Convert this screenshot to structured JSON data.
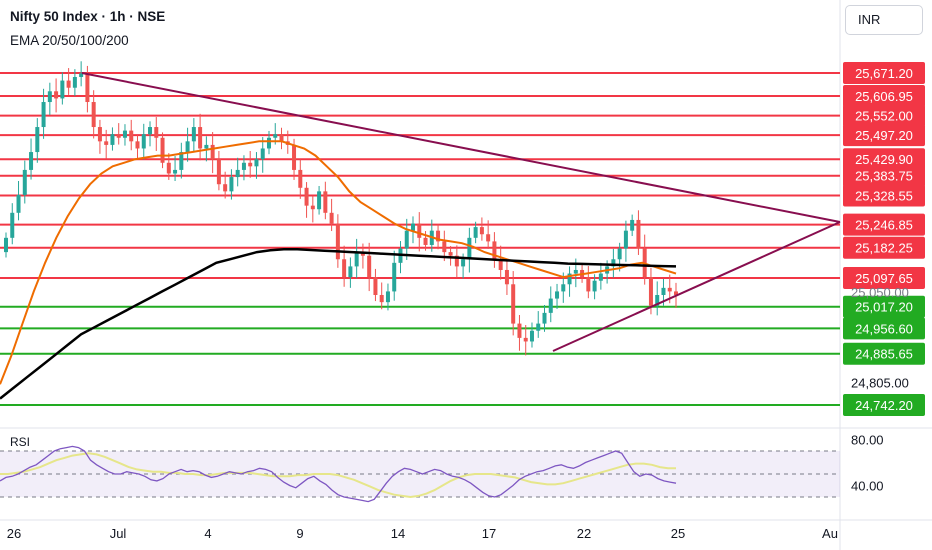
{
  "header": {
    "title": "Nifty 50 Index · 1h · NSE",
    "indicators": "EMA 20/50/100/200",
    "currency": "INR"
  },
  "chart_data": [
    {
      "type": "candlestick",
      "symbol": "Nifty 50 Index",
      "interval": "1h",
      "ylim": [
        24700,
        25720
      ],
      "x_ticks": [
        "26",
        "Jul",
        "4",
        "9",
        "14",
        "17",
        "22",
        "25",
        "Au"
      ],
      "y_levels_green": [
        25017.2,
        24956.6,
        24885.65,
        24742.2
      ],
      "y_levels_red": [
        25671.2,
        25606.95,
        25552.0,
        25497.2,
        25429.9,
        25383.75,
        25328.55,
        25246.85,
        25182.25,
        25097.65
      ],
      "y_axis_labels": [
        "24,805.00"
      ],
      "price_label_partial": "25,050.00",
      "trendlines": [
        {
          "name": "upper trendline",
          "from": [
            "Jun 28",
            25660
          ],
          "to": [
            "Jul 27",
            25250
          ]
        },
        {
          "name": "lower trendline",
          "from": [
            "Jul 20",
            24880
          ],
          "to": [
            "Jul 27",
            25250
          ]
        }
      ],
      "colors": {
        "up": "#26a69a",
        "down": "#ef5350",
        "resistance": "#f23645",
        "support": "#22ab22",
        "ema_fast": "#ef6c00",
        "ema_slow": "#000000",
        "trendline": "#880e4f"
      },
      "closes": [
        25210,
        25280,
        25330,
        25400,
        25450,
        25520,
        25590,
        25620,
        25600,
        25650,
        25630,
        25660,
        25670,
        25590,
        25520,
        25480,
        25470,
        25500,
        25490,
        25510,
        25480,
        25460,
        25500,
        25520,
        25490,
        25420,
        25390,
        25400,
        25450,
        25480,
        25520,
        25460,
        25470,
        25430,
        25360,
        25340,
        25380,
        25400,
        25420,
        25410,
        25430,
        25460,
        25490,
        25500,
        25480,
        25470,
        25400,
        25350,
        25300,
        25290,
        25340,
        25280,
        25250,
        25150,
        25100,
        25130,
        25170,
        25160,
        25100,
        25050,
        25030,
        25060,
        25140,
        25180,
        25230,
        25250,
        25210,
        25190,
        25230,
        25200,
        25170,
        25160,
        25130,
        25150,
        25210,
        25240,
        25220,
        25200,
        25150,
        25120,
        25080,
        24970,
        24930,
        24920,
        24950,
        24970,
        25000,
        25040,
        25060,
        25080,
        25110,
        25120,
        25100,
        25060,
        25090,
        25110,
        25130,
        25150,
        25180,
        25230,
        25260,
        25180,
        25100,
        25020,
        25050,
        25070,
        25060,
        25050
      ],
      "ema_fast": [
        24800,
        24880,
        24970,
        25060,
        25140,
        25210,
        25270,
        25320,
        25360,
        25390,
        25410,
        25420,
        25430,
        25435,
        25440,
        25440,
        25445,
        25450,
        25455,
        25460,
        25465,
        25470,
        25475,
        25480,
        25480,
        25480,
        25470,
        25460,
        25440,
        25410,
        25380,
        25340,
        25310,
        25290,
        25270,
        25250,
        25235,
        25225,
        25215,
        25205,
        25200,
        25195,
        25185,
        25170,
        25160,
        25150,
        25140,
        25130,
        25120,
        25110,
        25100,
        25105,
        25110,
        25115,
        25120,
        25125,
        25135,
        25140,
        25130,
        25120,
        25110
      ],
      "ema_slow": [
        24760,
        24790,
        24820,
        24850,
        24880,
        24910,
        24940,
        24960,
        24980,
        25000,
        25020,
        25040,
        25060,
        25080,
        25100,
        25120,
        25140,
        25150,
        25160,
        25170,
        25175,
        25178,
        25178,
        25176,
        25174,
        25172,
        25170,
        25168,
        25166,
        25164,
        25162,
        25160,
        25158,
        25156,
        25154,
        25152,
        25150,
        25148,
        25146,
        25144,
        25142,
        25140,
        25138,
        25137,
        25136,
        25135,
        25134,
        25133,
        25132,
        25131,
        25130
      ],
      "series": [
        {
          "name": "EMA fast",
          "color": "#ef6c00"
        },
        {
          "name": "EMA slow",
          "color": "#000000"
        }
      ]
    },
    {
      "type": "line",
      "name": "RSI",
      "y_ticks": [
        80.0,
        40.0
      ],
      "ylim": [
        10,
        90
      ],
      "band": [
        70,
        30
      ],
      "rsi": [
        44,
        47,
        48,
        50,
        53,
        56,
        58,
        62,
        66,
        70,
        72,
        73,
        74,
        73,
        70,
        62,
        58,
        55,
        52,
        50,
        50,
        52,
        51,
        50,
        48,
        45,
        44,
        46,
        50,
        52,
        54,
        52,
        53,
        52,
        49,
        47,
        48,
        50,
        52,
        51,
        50,
        52,
        53,
        55,
        54,
        52,
        47,
        43,
        40,
        38,
        42,
        46,
        48,
        44,
        41,
        36,
        32,
        30,
        29,
        28,
        27,
        26,
        28,
        35,
        42,
        48,
        52,
        55,
        54,
        52,
        50,
        52,
        54,
        53,
        50,
        48,
        47,
        45,
        42,
        38,
        34,
        31,
        30,
        32,
        36,
        40,
        45,
        48,
        50,
        52,
        53,
        55,
        57,
        58,
        56,
        55,
        57,
        60,
        62,
        64,
        66,
        68,
        70,
        68,
        60,
        52,
        48,
        50,
        49,
        46,
        44,
        43,
        42
      ],
      "rsi_ma": [
        50,
        50,
        51,
        52,
        54,
        56,
        59,
        62,
        64,
        66,
        67,
        68,
        67,
        65,
        62,
        59,
        56,
        54,
        53,
        52,
        52,
        51,
        51,
        50,
        50,
        49,
        49,
        50,
        51,
        51,
        51,
        51,
        50,
        49,
        48,
        48,
        48,
        49,
        49,
        50,
        50,
        50,
        49,
        47,
        45,
        42,
        39,
        36,
        34,
        32,
        31,
        30,
        31,
        33,
        36,
        40,
        44,
        47,
        49,
        50,
        50,
        50,
        49,
        48,
        47,
        45,
        43,
        42,
        41,
        41,
        42,
        44,
        46,
        48,
        50,
        52,
        54,
        56,
        58,
        59,
        59,
        58,
        56,
        55,
        55
      ]
    }
  ]
}
